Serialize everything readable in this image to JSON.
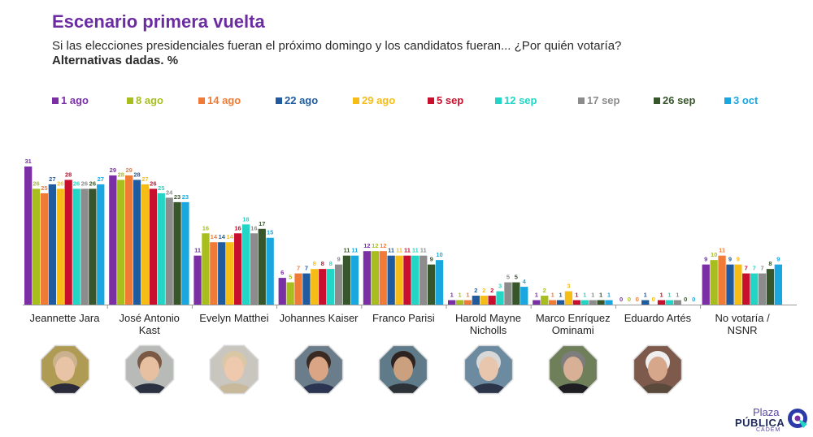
{
  "header": {
    "title": "Escenario primera vuelta",
    "subtitle": "Si las elecciones presidenciales fueran el próximo domingo y los candidatos fueran... ¿Por quién votaría?",
    "note": "Alternativas dadas. %"
  },
  "chart_data": {
    "type": "bar",
    "title": "Escenario primera vuelta",
    "xlabel": "",
    "ylabel": "%",
    "ylim": [
      0,
      33
    ],
    "categories": [
      "Jeannette Jara",
      "José Antonio Kast",
      "Evelyn Matthei",
      "Johannes Kaiser",
      "Franco Parisi",
      "Harold Mayne Nicholls",
      "Marco Enríquez Ominami",
      "Eduardo Artés",
      "No votaría / NSNR"
    ],
    "category_lines": [
      [
        "Jeannette Jara"
      ],
      [
        "José Antonio",
        "Kast"
      ],
      [
        "Evelyn Matthei"
      ],
      [
        "Johannes Kaiser"
      ],
      [
        "Franco Parisi"
      ],
      [
        "Harold Mayne",
        "Nicholls"
      ],
      [
        "Marco Enríquez",
        "Ominami"
      ],
      [
        "Eduardo Artés"
      ],
      [
        "No votaría /",
        "NSNR"
      ]
    ],
    "series": [
      {
        "name": "1 ago",
        "color": "#7b2fa5",
        "values": [
          31,
          29,
          11,
          6,
          12,
          1,
          1,
          0,
          9
        ]
      },
      {
        "name": "8 ago",
        "color": "#a8be1e",
        "values": [
          26,
          28,
          16,
          5,
          12,
          1,
          2,
          0,
          10
        ]
      },
      {
        "name": "14 ago",
        "color": "#f07b36",
        "values": [
          25,
          29,
          14,
          7,
          12,
          1,
          1,
          0,
          11
        ]
      },
      {
        "name": "22 ago",
        "color": "#1f5b9e",
        "values": [
          27,
          28,
          14,
          7,
          11,
          2,
          1,
          1,
          9
        ]
      },
      {
        "name": "29 ago",
        "color": "#f6bd16",
        "values": [
          26,
          27,
          14,
          8,
          11,
          2,
          3,
          0,
          9
        ]
      },
      {
        "name": "5 sep",
        "color": "#c8102e",
        "values": [
          28,
          26,
          16,
          8,
          11,
          2,
          1,
          1,
          7
        ]
      },
      {
        "name": "12 sep",
        "color": "#23d5c4",
        "values": [
          26,
          25,
          18,
          8,
          11,
          3,
          1,
          1,
          7
        ]
      },
      {
        "name": "17 sep",
        "color": "#8c8c8c",
        "values": [
          26,
          24,
          16,
          9,
          11,
          5,
          1,
          1,
          7
        ]
      },
      {
        "name": "26 sep",
        "color": "#38562b",
        "values": [
          26,
          23,
          17,
          11,
          9,
          5,
          1,
          0,
          8
        ]
      },
      {
        "name": "3 oct",
        "color": "#1aa7e0",
        "values": [
          27,
          23,
          15,
          11,
          10,
          4,
          1,
          0,
          9
        ]
      }
    ]
  },
  "portraits": [
    {
      "name": "Jeannette Jara",
      "icon": "portrait-icon"
    },
    {
      "name": "José Antonio Kast",
      "icon": "portrait-icon"
    },
    {
      "name": "Evelyn Matthei",
      "icon": "portrait-icon"
    },
    {
      "name": "Johannes Kaiser",
      "icon": "portrait-icon"
    },
    {
      "name": "Franco Parisi",
      "icon": "portrait-icon"
    },
    {
      "name": "Harold Mayne Nicholls",
      "icon": "portrait-icon"
    },
    {
      "name": "Marco Enríquez Ominami",
      "icon": "portrait-icon"
    },
    {
      "name": "Eduardo Artés",
      "icon": "portrait-icon"
    }
  ],
  "logo": {
    "top": "Plaza",
    "main": "PÚBLICA",
    "sub": "CADEM"
  }
}
